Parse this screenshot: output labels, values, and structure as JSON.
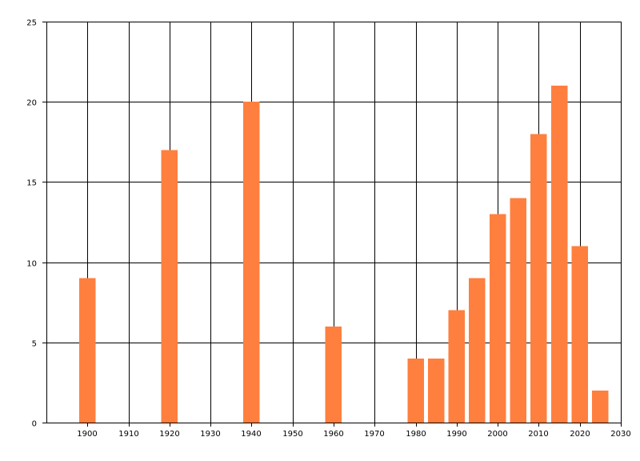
{
  "chart_data": {
    "type": "bar",
    "title": "",
    "xlabel": "",
    "ylabel": "",
    "xlim": [
      1890,
      2030
    ],
    "ylim": [
      0,
      25
    ],
    "grid": true,
    "x_ticks": [
      1900,
      1910,
      1920,
      1930,
      1940,
      1950,
      1960,
      1970,
      1980,
      1990,
      2000,
      2010,
      2020,
      2030
    ],
    "y_ticks": [
      0,
      5,
      10,
      15,
      20,
      25
    ],
    "series": [
      {
        "x": [
          1900,
          1920,
          1940,
          1960,
          1980,
          1985,
          1990,
          1995,
          2000,
          2005,
          2010,
          2015,
          2020,
          2025
        ],
        "values": [
          9,
          17,
          20,
          6,
          4,
          4,
          7,
          9,
          13,
          14,
          18,
          21,
          11,
          2
        ]
      }
    ],
    "colors": {
      "bar": "#FF7F3F",
      "grid": "#000000",
      "axis": "#000000",
      "text": "#000000"
    }
  }
}
